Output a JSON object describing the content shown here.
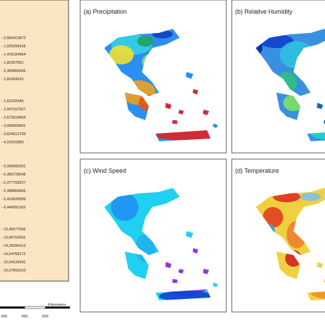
{
  "panels": [
    {
      "title": "(a) Precipitation"
    },
    {
      "title": "(b) Relative Humidity"
    },
    {
      "title": "(c) Wind Speed"
    },
    {
      "title": "(d) Temperature"
    }
  ],
  "legend": {
    "groups": [
      {
        "items": [
          "- 0,582413872",
          "- 1,029299418",
          "- 1,476184964",
          "- 1,92307051",
          "- 2,369956056",
          "- 2,81684162"
        ]
      },
      {
        "items": [
          "- 1,52242445",
          "- 2,047157527",
          "- 2,573518604",
          "- 3,099065661",
          "- 3,624612739",
          "- 4,15015983"
        ]
      },
      {
        "items": [
          "- 0,335660261",
          "- 0,356725648",
          "- 0,377792627",
          "- 0,398859606",
          "- 0,419926589",
          "- 0,440991163"
        ]
      },
      {
        "items": [
          "- 13,40077006",
          "- 13,86702061",
          "- 14,26095413",
          "- 14,64758172",
          "- 15,04126341",
          "- 15,07650310"
        ]
      }
    ]
  },
  "scale_bar": {
    "ticks": [
      "300",
      "450",
      "600"
    ],
    "unit": "Kilometers"
  }
}
